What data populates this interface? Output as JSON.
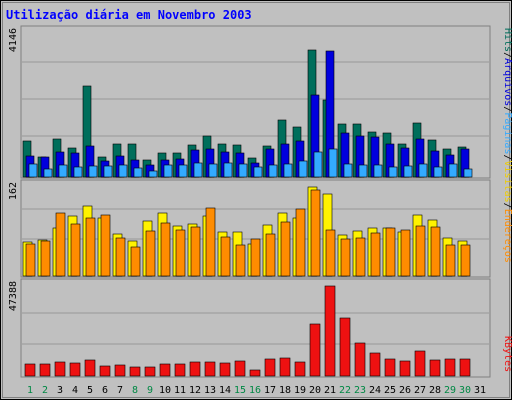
{
  "chart_data": {
    "type": "bar",
    "title": "Utilização diária em Novembro 2003",
    "categories": [
      "1",
      "2",
      "3",
      "4",
      "5",
      "6",
      "7",
      "8",
      "9",
      "10",
      "11",
      "12",
      "13",
      "14",
      "15",
      "16",
      "17",
      "18",
      "19",
      "20",
      "21",
      "22",
      "23",
      "24",
      "25",
      "26",
      "27",
      "28",
      "29",
      "30",
      "31"
    ],
    "weekend_days": [
      "1",
      "2",
      "8",
      "9",
      "15",
      "16",
      "22",
      "23",
      "29",
      "30"
    ],
    "panels": [
      {
        "id": "traffic",
        "ymax_label": "4146",
        "ylim": [
          0,
          4146
        ],
        "series": [
          {
            "name": "Hits",
            "color": "#006E5B",
            "values": [
              1014,
              570,
              1048,
              815,
              2530,
              548,
              918,
              922,
              463,
              673,
              659,
              890,
              1153,
              920,
              904,
              533,
              868,
              1587,
              1382,
              3547,
              2130,
              1483,
              1483,
              1240,
              1211,
              908,
              1501,
              1037,
              773,
              838,
              0
            ]
          },
          {
            "name": "Arquivos",
            "color": "#0000DD",
            "values": [
              590,
              553,
              685,
              677,
              853,
              456,
              586,
              473,
              336,
              471,
              497,
              752,
              789,
              690,
              665,
              390,
              769,
              924,
              1009,
              2279,
              3499,
              1224,
              1140,
              1114,
              925,
              802,
              1060,
              727,
              607,
              772,
              0
            ]
          },
          {
            "name": "Páginas",
            "color": "#33AAFF",
            "values": [
              348,
              223,
              332,
              286,
              306,
              301,
              320,
              262,
              175,
              342,
              344,
              403,
              374,
              381,
              359,
              267,
              326,
              365,
              435,
              689,
              778,
              350,
              330,
              334,
              274,
              301,
              358,
              288,
              361,
              217,
              0
            ]
          }
        ]
      },
      {
        "id": "visits",
        "ymax_label": "162",
        "ylim": [
          0,
          162
        ],
        "series": [
          {
            "name": "Visitas",
            "color": "#FFF200",
            "values": [
              58,
              62,
              82,
              104,
              120,
              100,
              72,
              60,
              95,
              108,
              86,
              90,
              104,
              76,
              76,
              56,
              88,
              109,
              100,
              154,
              142,
              70,
              78,
              82,
              83,
              76,
              105,
              96,
              65,
              60,
              0
            ]
          },
          {
            "name": "Endereços",
            "color": "#FF8C00",
            "values": [
              55,
              60,
              108,
              90,
              100,
              105,
              66,
              50,
              77,
              92,
              79,
              84,
              118,
              68,
              54,
              64,
              72,
              93,
              115,
              148,
              80,
              63,
              66,
              74,
              82,
              80,
              86,
              84,
              54,
              54,
              0
            ]
          }
        ]
      },
      {
        "id": "bytes",
        "ymax_label": "47388",
        "ylim": [
          0,
          47388
        ],
        "series": [
          {
            "name": "KBytes",
            "color": "#EE1111",
            "values": [
              6200,
              5800,
              6900,
              6700,
              8100,
              5200,
              5600,
              4400,
              4600,
              5900,
              6000,
              7000,
              6800,
              6400,
              7600,
              3000,
              8300,
              9100,
              7200,
              25800,
              45000,
              29000,
              16400,
              11600,
              8700,
              7600,
              12500,
              7900,
              8400,
              8600,
              0
            ]
          }
        ]
      }
    ]
  }
}
